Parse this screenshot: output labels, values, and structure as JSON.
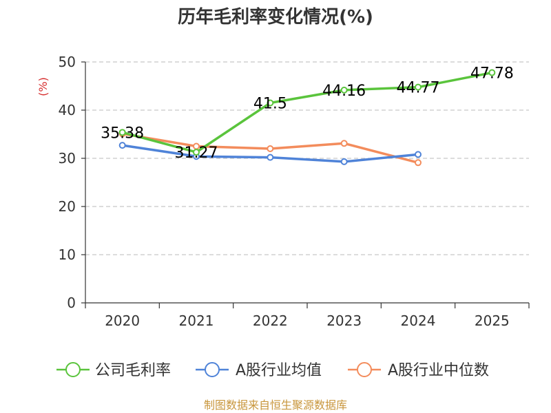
{
  "chart_data": {
    "type": "line",
    "title": "历年毛利率变化情况(%)",
    "ylabel": "(%)",
    "xlabel": "",
    "categories": [
      "2020",
      "2021",
      "2022",
      "2023",
      "2024",
      "2025"
    ],
    "ylim": [
      0,
      50
    ],
    "yticks": [
      0,
      10,
      20,
      30,
      40,
      50
    ],
    "grid": true,
    "legend_position": "bottom",
    "series": [
      {
        "name": "公司毛利率",
        "color": "#5ac43c",
        "values": [
          35.38,
          31.27,
          41.5,
          44.16,
          44.77,
          47.78
        ],
        "labels": [
          "35.38",
          "31.27",
          "41.5",
          "44.16",
          "44.77",
          "47.78"
        ]
      },
      {
        "name": "A股行业均值",
        "color": "#4f83d8",
        "values": [
          32.7,
          30.4,
          30.2,
          29.3,
          30.8,
          null
        ]
      },
      {
        "name": "A股行业中位数",
        "color": "#f38c5c",
        "values": [
          35.1,
          32.5,
          32.0,
          33.1,
          29.1,
          null
        ]
      }
    ],
    "source": "制图数据来自恒生聚源数据库",
    "ylabel_color": "#d62c2c",
    "source_color": "#c8963c"
  }
}
